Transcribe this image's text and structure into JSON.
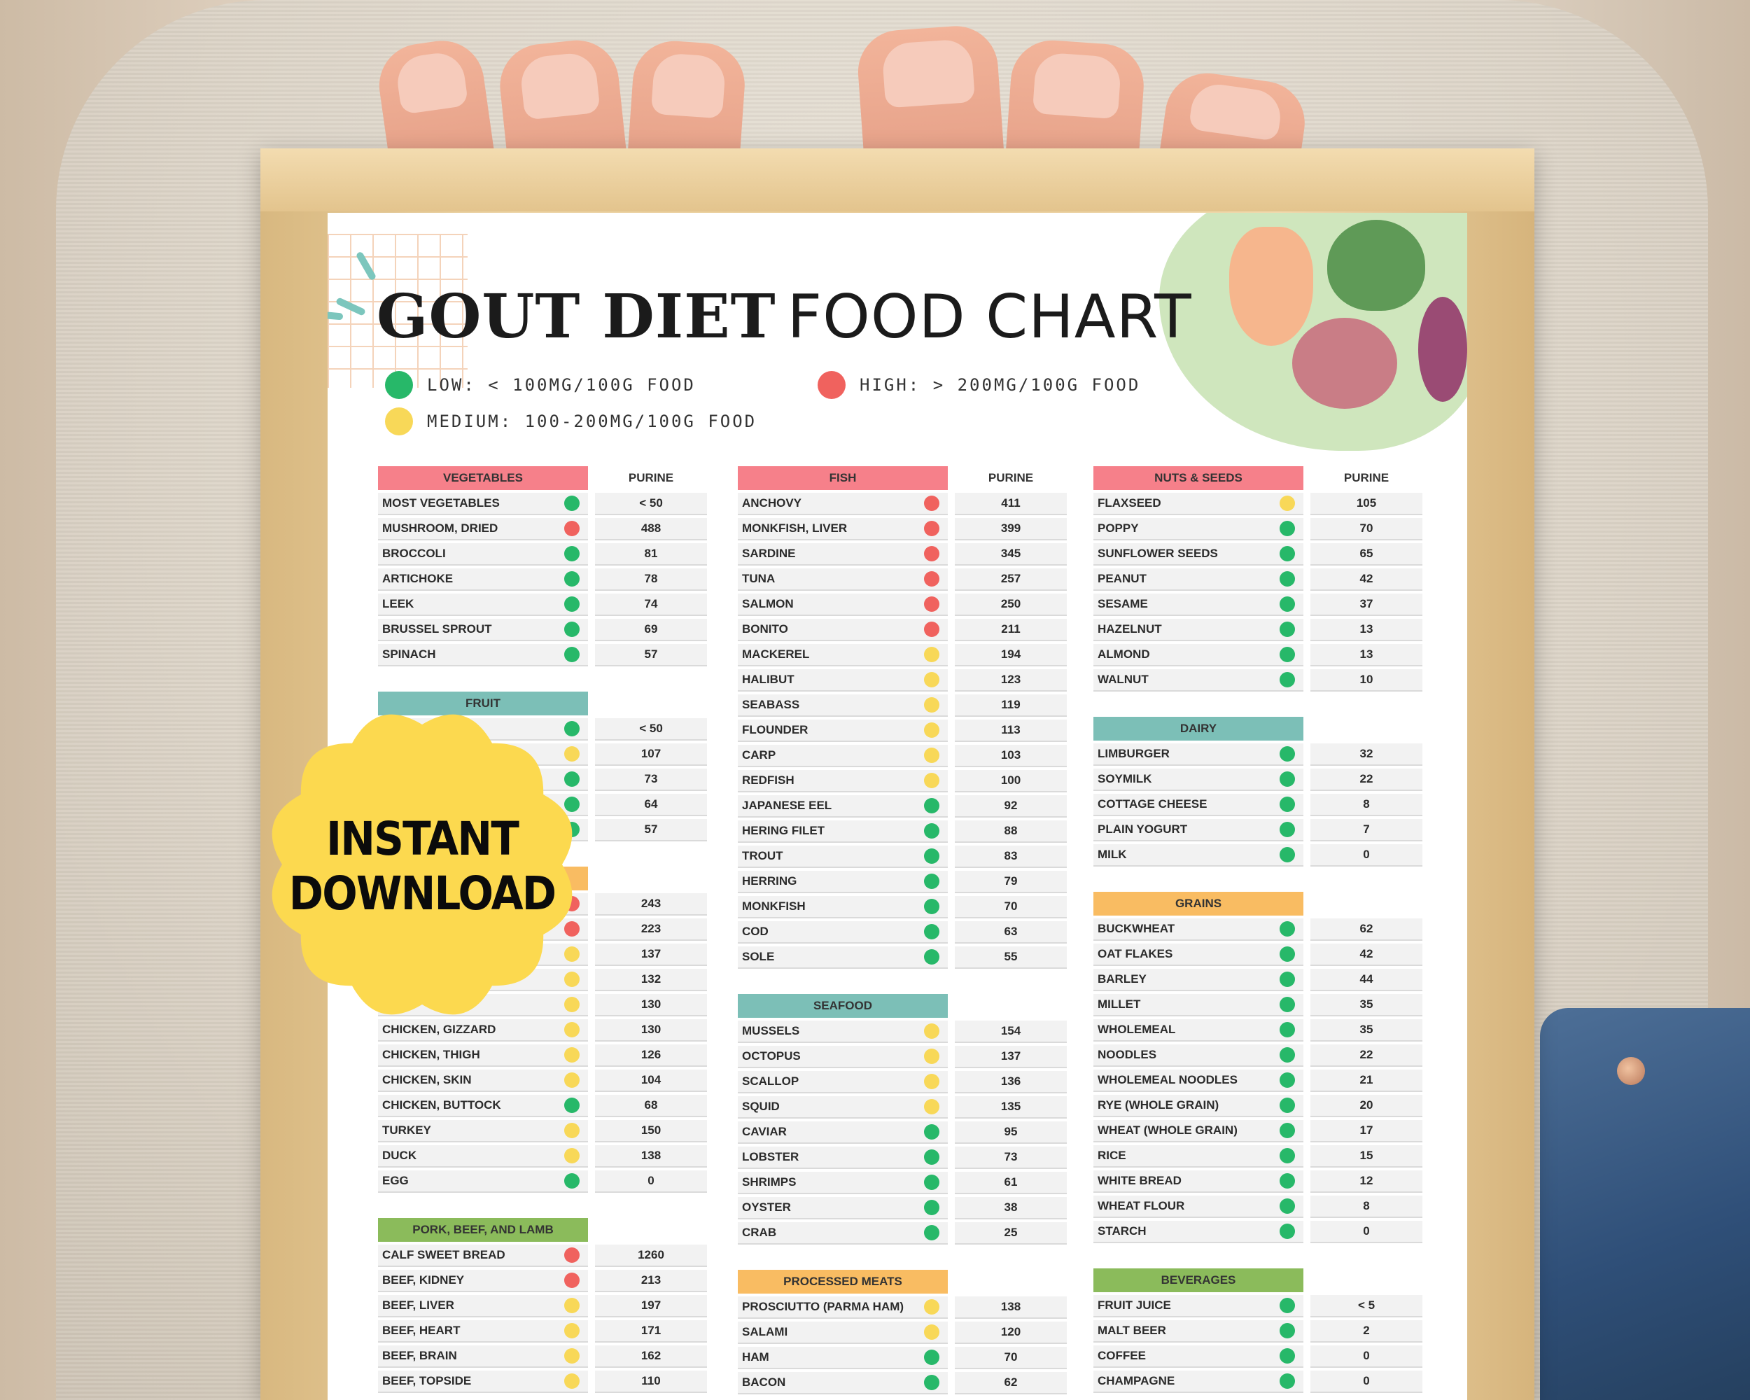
{
  "title": {
    "bold": "GOUT DIET",
    "light": "FOOD CHART"
  },
  "legend": {
    "low": "LOW: < 100MG/100G FOOD",
    "medium": "MEDIUM: 100-200MG/100G FOOD",
    "high": "HIGH: > 200MG/100G FOOD"
  },
  "colors": {
    "low": "#27b869",
    "medium": "#f8d858",
    "high": "#f0625e",
    "head_red": "#f6808a",
    "head_teal": "#7cbfb7",
    "head_orange": "#f9bc62",
    "head_green": "#8bbb5b"
  },
  "badge": {
    "line1": "INSTANT",
    "line2": "DOWNLOAD"
  },
  "purine_label": "PURINE",
  "columns": [
    [
      {
        "title": "VEGETABLES",
        "color": "head_red",
        "purine": "PURINE",
        "rows": [
          {
            "name": "MOST VEGETABLES",
            "level": "low",
            "value": "< 50"
          },
          {
            "name": "MUSHROOM, DRIED",
            "level": "high",
            "value": "488"
          },
          {
            "name": "BROCCOLI",
            "level": "low",
            "value": "81"
          },
          {
            "name": "ARTICHOKE",
            "level": "low",
            "value": "78"
          },
          {
            "name": "LEEK",
            "level": "low",
            "value": "74"
          },
          {
            "name": "BRUSSEL SPROUT",
            "level": "low",
            "value": "69"
          },
          {
            "name": "SPINACH",
            "level": "low",
            "value": "57"
          }
        ]
      },
      {
        "title": "FRUIT",
        "color": "head_teal",
        "purine": "",
        "rows": [
          {
            "name": "",
            "level": "low",
            "value": "< 50"
          },
          {
            "name": "",
            "level": "medium",
            "value": "107"
          },
          {
            "name": "",
            "level": "low",
            "value": "73"
          },
          {
            "name": "",
            "level": "low",
            "value": "64"
          },
          {
            "name": "",
            "level": "low",
            "value": "57"
          }
        ]
      },
      {
        "title": "",
        "color": "head_orange",
        "purine": "",
        "rows": [
          {
            "name": "",
            "level": "high",
            "value": "243"
          },
          {
            "name": "",
            "level": "high",
            "value": "223"
          },
          {
            "name": "",
            "level": "medium",
            "value": "137"
          },
          {
            "name": "",
            "level": "medium",
            "value": "132"
          },
          {
            "name": "",
            "level": "medium",
            "value": "130"
          },
          {
            "name": "CHICKEN, GIZZARD",
            "level": "medium",
            "value": "130"
          },
          {
            "name": "CHICKEN, THIGH",
            "level": "medium",
            "value": "126"
          },
          {
            "name": "CHICKEN, SKIN",
            "level": "medium",
            "value": "104"
          },
          {
            "name": "CHICKEN, BUTTOCK",
            "level": "low",
            "value": "68"
          },
          {
            "name": "TURKEY",
            "level": "medium",
            "value": "150"
          },
          {
            "name": "DUCK",
            "level": "medium",
            "value": "138"
          },
          {
            "name": "EGG",
            "level": "low",
            "value": "0"
          }
        ]
      },
      {
        "title": "PORK, BEEF, AND LAMB",
        "color": "head_green",
        "purine": "",
        "rows": [
          {
            "name": "CALF SWEET BREAD",
            "level": "high",
            "value": "1260"
          },
          {
            "name": "BEEF, KIDNEY",
            "level": "high",
            "value": "213"
          },
          {
            "name": "BEEF, LIVER",
            "level": "medium",
            "value": "197"
          },
          {
            "name": "BEEF, HEART",
            "level": "medium",
            "value": "171"
          },
          {
            "name": "BEEF, BRAIN",
            "level": "medium",
            "value": "162"
          },
          {
            "name": "BEEF, TOPSIDE",
            "level": "medium",
            "value": "110"
          }
        ]
      }
    ],
    [
      {
        "title": "FISH",
        "color": "head_red",
        "purine": "PURINE",
        "rows": [
          {
            "name": "ANCHOVY",
            "level": "high",
            "value": "411"
          },
          {
            "name": "MONKFISH, LIVER",
            "level": "high",
            "value": "399"
          },
          {
            "name": "SARDINE",
            "level": "high",
            "value": "345"
          },
          {
            "name": "TUNA",
            "level": "high",
            "value": "257"
          },
          {
            "name": "SALMON",
            "level": "high",
            "value": "250"
          },
          {
            "name": "BONITO",
            "level": "high",
            "value": "211"
          },
          {
            "name": "MACKEREL",
            "level": "medium",
            "value": "194"
          },
          {
            "name": "HALIBUT",
            "level": "medium",
            "value": "123"
          },
          {
            "name": "SEABASS",
            "level": "medium",
            "value": "119"
          },
          {
            "name": "FLOUNDER",
            "level": "medium",
            "value": "113"
          },
          {
            "name": "CARP",
            "level": "medium",
            "value": "103"
          },
          {
            "name": "REDFISH",
            "level": "medium",
            "value": "100"
          },
          {
            "name": "JAPANESE EEL",
            "level": "low",
            "value": "92"
          },
          {
            "name": "HERING FILET",
            "level": "low",
            "value": "88"
          },
          {
            "name": "TROUT",
            "level": "low",
            "value": "83"
          },
          {
            "name": "HERRING",
            "level": "low",
            "value": "79"
          },
          {
            "name": "MONKFISH",
            "level": "low",
            "value": "70"
          },
          {
            "name": "COD",
            "level": "low",
            "value": "63"
          },
          {
            "name": "SOLE",
            "level": "low",
            "value": "55"
          }
        ]
      },
      {
        "title": "SEAFOOD",
        "color": "head_teal",
        "purine": "",
        "rows": [
          {
            "name": "MUSSELS",
            "level": "medium",
            "value": "154"
          },
          {
            "name": "OCTOPUS",
            "level": "medium",
            "value": "137"
          },
          {
            "name": "SCALLOP",
            "level": "medium",
            "value": "136"
          },
          {
            "name": "SQUID",
            "level": "medium",
            "value": "135"
          },
          {
            "name": "CAVIAR",
            "level": "low",
            "value": "95"
          },
          {
            "name": "LOBSTER",
            "level": "low",
            "value": "73"
          },
          {
            "name": "SHRIMPS",
            "level": "low",
            "value": "61"
          },
          {
            "name": "OYSTER",
            "level": "low",
            "value": "38"
          },
          {
            "name": "CRAB",
            "level": "low",
            "value": "25"
          }
        ]
      },
      {
        "title": "PROCESSED MEATS",
        "color": "head_orange",
        "purine": "",
        "rows": [
          {
            "name": "PROSCIUTTO (PARMA HAM)",
            "level": "medium",
            "value": "138"
          },
          {
            "name": "SALAMI",
            "level": "medium",
            "value": "120"
          },
          {
            "name": "HAM",
            "level": "low",
            "value": "70"
          },
          {
            "name": "BACON",
            "level": "low",
            "value": "62"
          }
        ]
      }
    ],
    [
      {
        "title": "NUTS & SEEDS",
        "color": "head_red",
        "purine": "PURINE",
        "rows": [
          {
            "name": "FLAXSEED",
            "level": "medium",
            "value": "105"
          },
          {
            "name": "POPPY",
            "level": "low",
            "value": "70"
          },
          {
            "name": "SUNFLOWER SEEDS",
            "level": "low",
            "value": "65"
          },
          {
            "name": "PEANUT",
            "level": "low",
            "value": "42"
          },
          {
            "name": "SESAME",
            "level": "low",
            "value": "37"
          },
          {
            "name": "HAZELNUT",
            "level": "low",
            "value": "13"
          },
          {
            "name": "ALMOND",
            "level": "low",
            "value": "13"
          },
          {
            "name": "WALNUT",
            "level": "low",
            "value": "10"
          }
        ]
      },
      {
        "title": "DAIRY",
        "color": "head_teal",
        "purine": "",
        "rows": [
          {
            "name": "LIMBURGER",
            "level": "low",
            "value": "32"
          },
          {
            "name": "SOYMILK",
            "level": "low",
            "value": "22"
          },
          {
            "name": "COTTAGE CHEESE",
            "level": "low",
            "value": "8"
          },
          {
            "name": "PLAIN YOGURT",
            "level": "low",
            "value": "7"
          },
          {
            "name": "MILK",
            "level": "low",
            "value": "0"
          }
        ]
      },
      {
        "title": "GRAINS",
        "color": "head_orange",
        "purine": "",
        "rows": [
          {
            "name": "BUCKWHEAT",
            "level": "low",
            "value": "62"
          },
          {
            "name": "OAT FLAKES",
            "level": "low",
            "value": "42"
          },
          {
            "name": "BARLEY",
            "level": "low",
            "value": "44"
          },
          {
            "name": "MILLET",
            "level": "low",
            "value": "35"
          },
          {
            "name": "WHOLEMEAL",
            "level": "low",
            "value": "35"
          },
          {
            "name": "NOODLES",
            "level": "low",
            "value": "22"
          },
          {
            "name": "WHOLEMEAL NOODLES",
            "level": "low",
            "value": "21"
          },
          {
            "name": "RYE (WHOLE GRAIN)",
            "level": "low",
            "value": "20"
          },
          {
            "name": "WHEAT (WHOLE GRAIN)",
            "level": "low",
            "value": "17"
          },
          {
            "name": "RICE",
            "level": "low",
            "value": "15"
          },
          {
            "name": "WHITE BREAD",
            "level": "low",
            "value": "12"
          },
          {
            "name": "WHEAT FLOUR",
            "level": "low",
            "value": "8"
          },
          {
            "name": "STARCH",
            "level": "low",
            "value": "0"
          }
        ]
      },
      {
        "title": "BEVERAGES",
        "color": "head_green",
        "purine": "",
        "rows": [
          {
            "name": "FRUIT JUICE",
            "level": "low",
            "value": "< 5"
          },
          {
            "name": "MALT BEER",
            "level": "low",
            "value": "2"
          },
          {
            "name": "COFFEE",
            "level": "low",
            "value": "0"
          },
          {
            "name": "CHAMPAGNE",
            "level": "low",
            "value": "0"
          }
        ]
      }
    ]
  ]
}
